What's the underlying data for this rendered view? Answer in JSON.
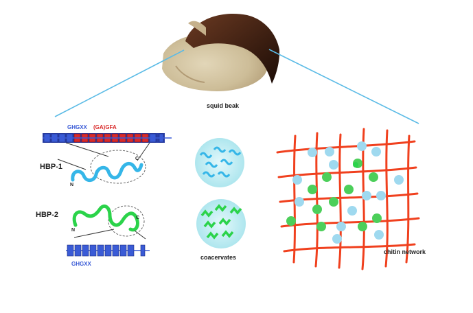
{
  "labels": {
    "beak": "squid beak",
    "motif_blue": "GHGXX",
    "motif_red": "(GA)GFA",
    "hbp1": "HBP-1",
    "hbp2": "HBP-2",
    "motif_bottom": "GHGXX",
    "coacervates": "coacervates",
    "chitin": "chitin network",
    "n_term": "N",
    "c_term": "C"
  },
  "colors": {
    "blue_block": "#3a5bd6",
    "red_block": "#d92a2a",
    "hbp1_chain": "#35b6e8",
    "hbp2_chain": "#2bd34a",
    "chitin": "#f0401e",
    "droplet": "#bfeef4",
    "guide_line": "#5bbbe6"
  },
  "icons": [
    "squid-beak-image",
    "coacervate-droplet",
    "chitin-fiber-grid",
    "protein-blob"
  ]
}
